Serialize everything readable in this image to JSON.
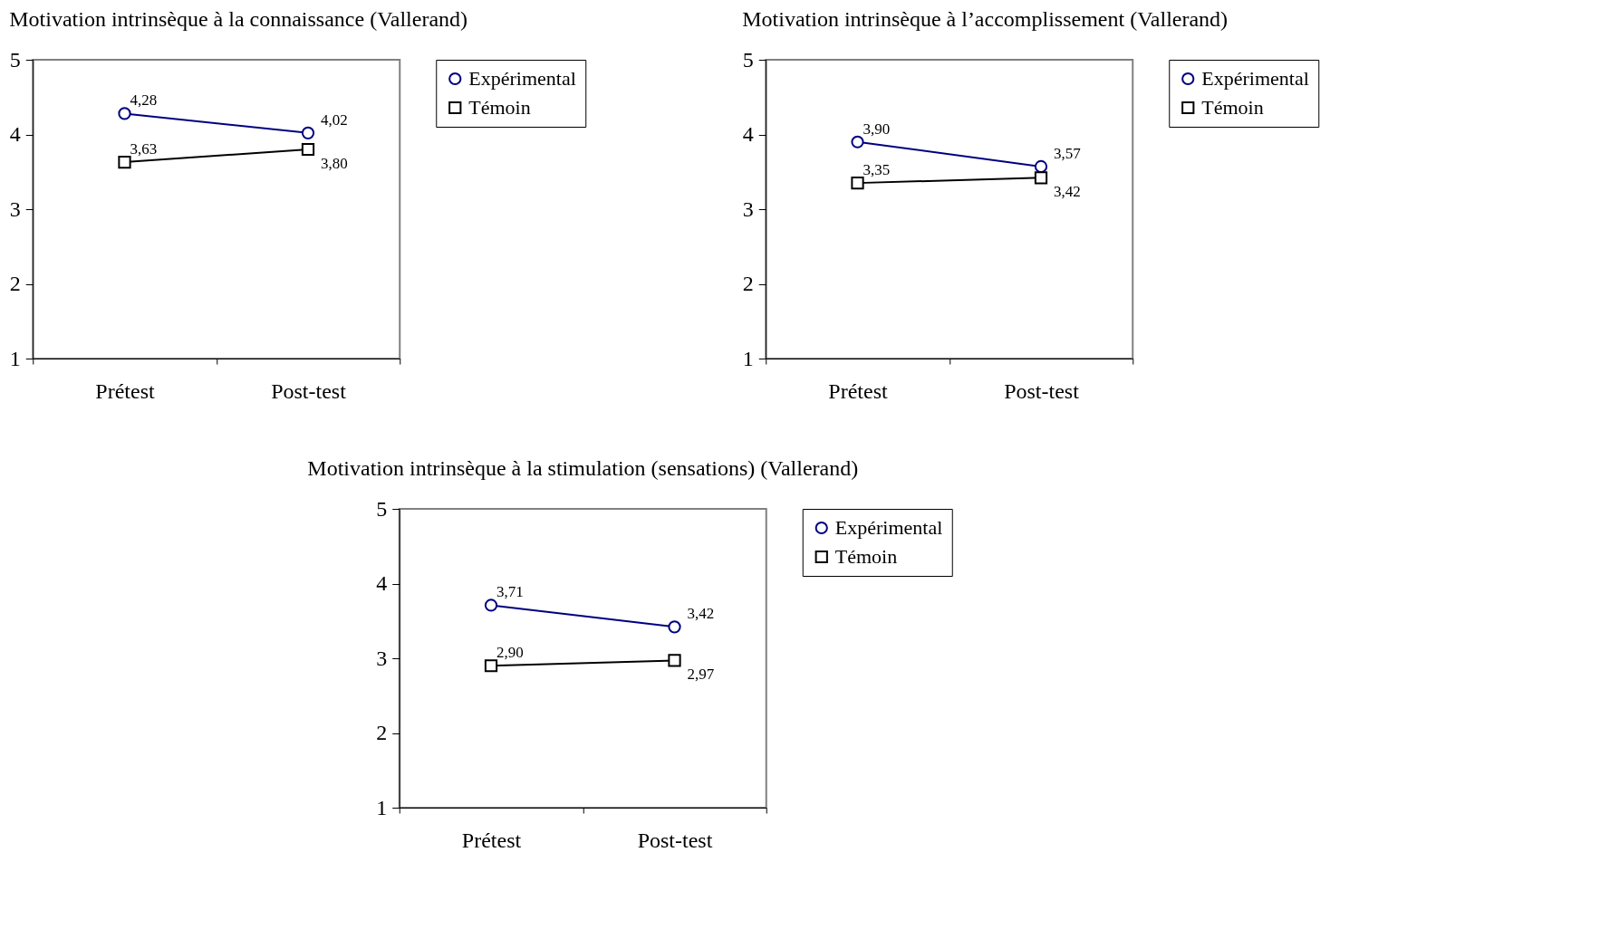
{
  "chart_data": [
    {
      "type": "line",
      "title": "Motivation intrinsèque à la connaissance (Vallerand)",
      "categories": [
        "Prétest",
        "Post-test"
      ],
      "series": [
        {
          "name": "Expérimental",
          "color": "#000080",
          "marker": "circle",
          "values": [
            4.28,
            4.02
          ],
          "value_labels": [
            "4,28",
            "4,02"
          ]
        },
        {
          "name": "Témoin",
          "color": "#000000",
          "marker": "square",
          "values": [
            3.63,
            3.8
          ],
          "value_labels": [
            "3,63",
            "3,80"
          ]
        }
      ],
      "ylim": [
        1,
        5
      ],
      "yticks": [
        1,
        2,
        3,
        4,
        5
      ],
      "grid": false,
      "legend": "right",
      "line_style": "solid"
    },
    {
      "type": "line",
      "title": "Motivation intrinsèque à l’accomplissement (Vallerand)",
      "categories": [
        "Prétest",
        "Post-test"
      ],
      "series": [
        {
          "name": "Expérimental",
          "color": "#000080",
          "marker": "circle",
          "values": [
            3.9,
            3.57
          ],
          "value_labels": [
            "3,90",
            "3,57"
          ]
        },
        {
          "name": "Témoin",
          "color": "#000000",
          "marker": "square",
          "values": [
            3.35,
            3.42
          ],
          "value_labels": [
            "3,35",
            "3,42"
          ]
        }
      ],
      "ylim": [
        1,
        5
      ],
      "yticks": [
        1,
        2,
        3,
        4,
        5
      ],
      "grid": false,
      "legend": "right",
      "line_style": "solid"
    },
    {
      "type": "line",
      "title": "Motivation intrinsèque à la stimulation (sensations) (Vallerand)",
      "categories": [
        "Prétest",
        "Post-test"
      ],
      "series": [
        {
          "name": "Expérimental",
          "color": "#000080",
          "marker": "circle",
          "values": [
            3.71,
            3.42
          ],
          "value_labels": [
            "3,71",
            "3,42"
          ]
        },
        {
          "name": "Témoin",
          "color": "#000000",
          "marker": "square",
          "values": [
            2.9,
            2.97
          ],
          "value_labels": [
            "2,90",
            "2,97"
          ]
        }
      ],
      "ylim": [
        1,
        5
      ],
      "yticks": [
        1,
        2,
        3,
        4,
        5
      ],
      "grid": false,
      "legend": "right",
      "line_style": "solid"
    }
  ]
}
